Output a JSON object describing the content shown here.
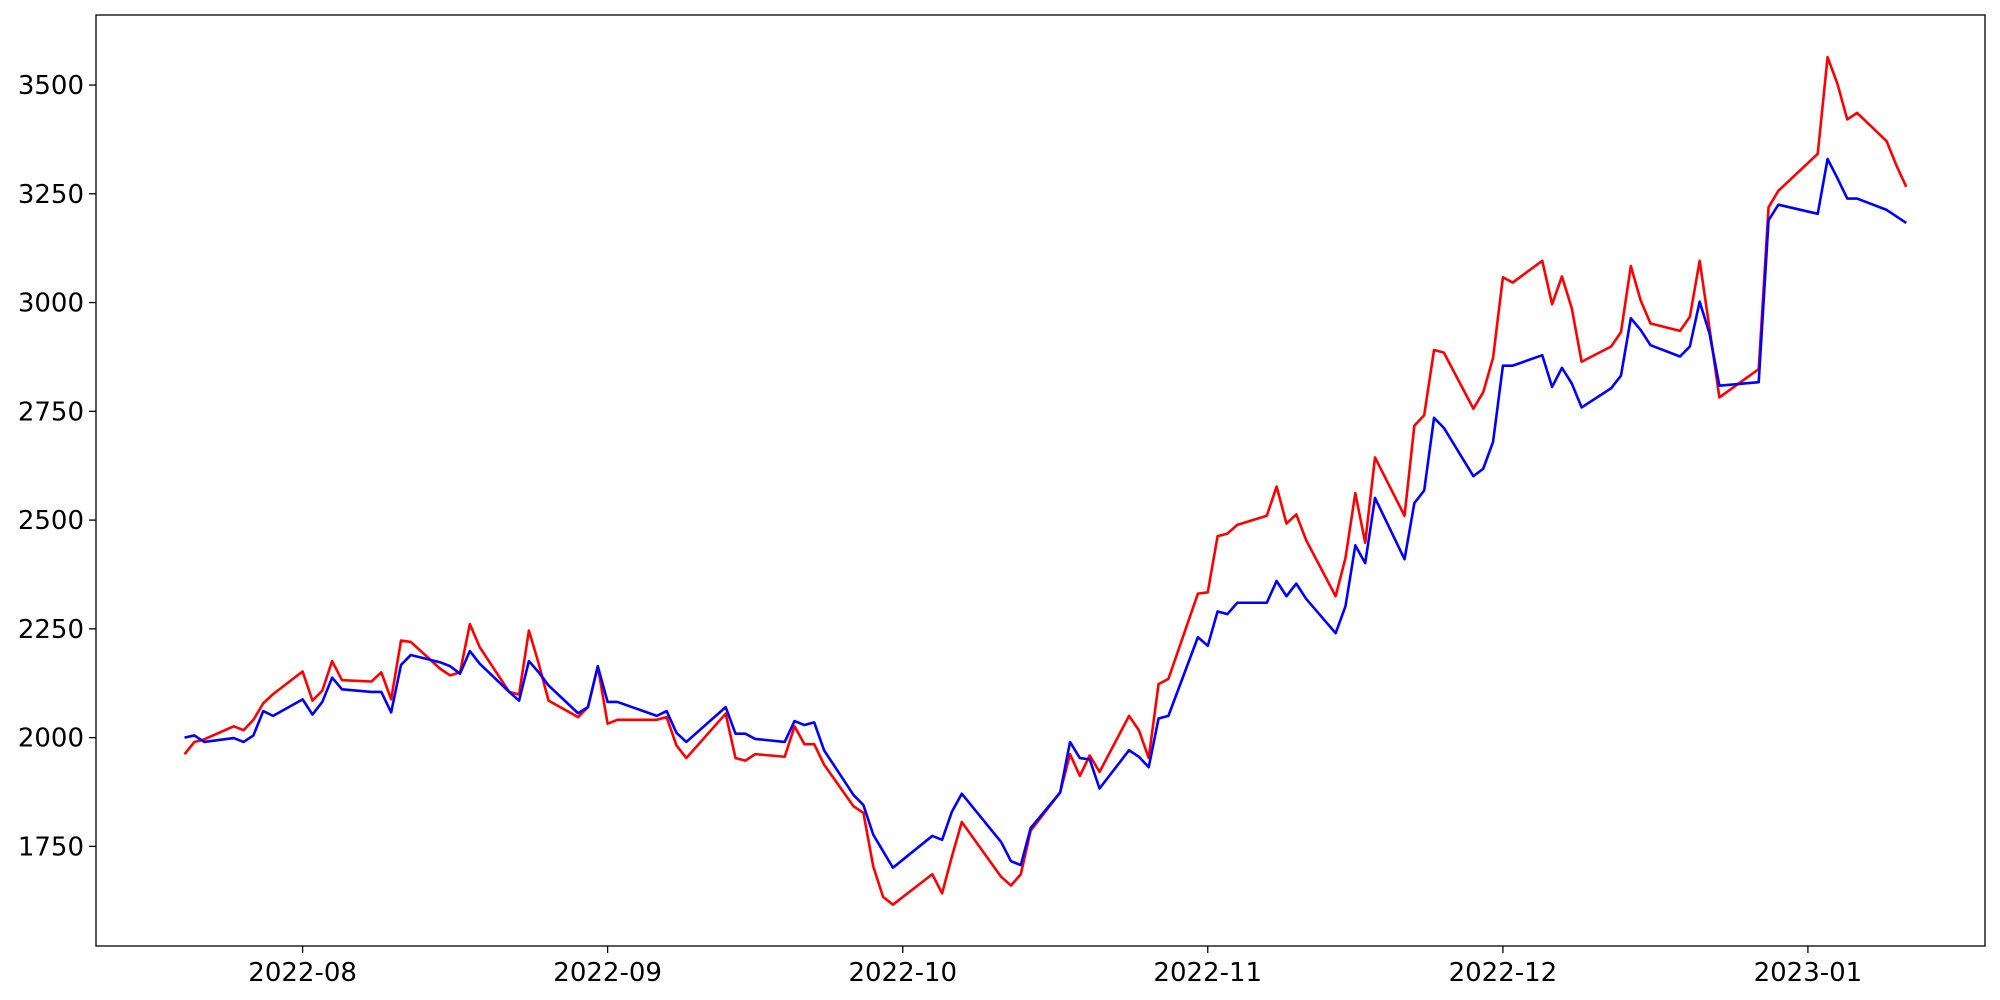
{
  "chart_data": {
    "type": "line",
    "x": [
      "2022-07-20",
      "2022-07-21",
      "2022-07-22",
      "2022-07-25",
      "2022-07-26",
      "2022-07-27",
      "2022-07-28",
      "2022-07-29",
      "2022-08-01",
      "2022-08-02",
      "2022-08-03",
      "2022-08-04",
      "2022-08-05",
      "2022-08-08",
      "2022-08-09",
      "2022-08-10",
      "2022-08-11",
      "2022-08-12",
      "2022-08-15",
      "2022-08-16",
      "2022-08-17",
      "2022-08-18",
      "2022-08-19",
      "2022-08-22",
      "2022-08-23",
      "2022-08-24",
      "2022-08-25",
      "2022-08-26",
      "2022-08-29",
      "2022-08-30",
      "2022-08-31",
      "2022-09-01",
      "2022-09-02",
      "2022-09-06",
      "2022-09-07",
      "2022-09-08",
      "2022-09-09",
      "2022-09-13",
      "2022-09-14",
      "2022-09-15",
      "2022-09-16",
      "2022-09-19",
      "2022-09-20",
      "2022-09-21",
      "2022-09-22",
      "2022-09-23",
      "2022-09-26",
      "2022-09-27",
      "2022-09-28",
      "2022-09-29",
      "2022-09-30",
      "2022-10-04",
      "2022-10-05",
      "2022-10-06",
      "2022-10-07",
      "2022-10-11",
      "2022-10-12",
      "2022-10-13",
      "2022-10-14",
      "2022-10-17",
      "2022-10-18",
      "2022-10-19",
      "2022-10-20",
      "2022-10-21",
      "2022-10-24",
      "2022-10-25",
      "2022-10-26",
      "2022-10-27",
      "2022-10-28",
      "2022-10-31",
      "2022-11-01",
      "2022-11-02",
      "2022-11-03",
      "2022-11-04",
      "2022-11-07",
      "2022-11-08",
      "2022-11-09",
      "2022-11-10",
      "2022-11-11",
      "2022-11-14",
      "2022-11-15",
      "2022-11-16",
      "2022-11-17",
      "2022-11-18",
      "2022-11-21",
      "2022-11-22",
      "2022-11-23",
      "2022-11-24",
      "2022-11-25",
      "2022-11-28",
      "2022-11-29",
      "2022-11-30",
      "2022-12-01",
      "2022-12-02",
      "2022-12-05",
      "2022-12-06",
      "2022-12-07",
      "2022-12-08",
      "2022-12-09",
      "2022-12-12",
      "2022-12-13",
      "2022-12-14",
      "2022-12-15",
      "2022-12-16",
      "2022-12-19",
      "2022-12-20",
      "2022-12-21",
      "2022-12-22",
      "2022-12-23",
      "2022-12-27",
      "2022-12-28",
      "2022-12-29",
      "2023-01-02",
      "2023-01-03",
      "2023-01-04",
      "2023-01-05",
      "2023-01-06",
      "2023-01-09",
      "2023-01-10",
      "2023-01-11"
    ],
    "series": [
      {
        "color": "#ff0000",
        "values": [
          1962,
          1990,
          1996,
          2026,
          2017,
          2041,
          2079,
          2100,
          2152,
          2085,
          2108,
          2176,
          2132,
          2129,
          2150,
          2088,
          2223,
          2220,
          2158,
          2143,
          2150,
          2261,
          2208,
          2105,
          2099,
          2246,
          2170,
          2085,
          2047,
          2070,
          2164,
          2032,
          2041,
          2041,
          2047,
          1982,
          1953,
          2055,
          1953,
          1947,
          1962,
          1956,
          2026,
          1985,
          1985,
          1938,
          1842,
          1827,
          1704,
          1634,
          1616,
          1686,
          1642,
          1727,
          1806,
          1680,
          1660,
          1686,
          1786,
          1874,
          1962,
          1912,
          1959,
          1921,
          2050,
          2017,
          1953,
          2123,
          2135,
          2331,
          2334,
          2463,
          2469,
          2489,
          2510,
          2577,
          2492,
          2513,
          2454,
          2325,
          2413,
          2562,
          2448,
          2644,
          2510,
          2717,
          2741,
          2891,
          2885,
          2756,
          2794,
          2873,
          3058,
          3046,
          3096,
          2996,
          3060,
          2987,
          2864,
          2899,
          2932,
          3084,
          3005,
          2952,
          2935,
          2967,
          3096,
          2941,
          2782,
          2847,
          3219,
          3257,
          3342,
          3564,
          3503,
          3421,
          3436,
          3371,
          3315,
          3266
        ]
      },
      {
        "color": "#0000ff",
        "values": [
          2000,
          2005,
          1990,
          1999,
          1990,
          2005,
          2061,
          2050,
          2088,
          2053,
          2082,
          2138,
          2111,
          2105,
          2105,
          2058,
          2167,
          2190,
          2173,
          2164,
          2147,
          2199,
          2170,
          2105,
          2085,
          2176,
          2150,
          2120,
          2056,
          2070,
          2164,
          2082,
          2082,
          2050,
          2061,
          2011,
          1990,
          2070,
          2009,
          2009,
          1997,
          1990,
          2038,
          2029,
          2035,
          1971,
          1868,
          1845,
          1777,
          1739,
          1701,
          1774,
          1765,
          1830,
          1871,
          1760,
          1716,
          1707,
          1792,
          1874,
          1990,
          1953,
          1950,
          1883,
          1971,
          1956,
          1932,
          2044,
          2050,
          2231,
          2211,
          2290,
          2284,
          2310,
          2310,
          2360,
          2325,
          2354,
          2319,
          2240,
          2302,
          2442,
          2401,
          2551,
          2410,
          2539,
          2568,
          2735,
          2712,
          2601,
          2618,
          2680,
          2855,
          2855,
          2879,
          2806,
          2850,
          2814,
          2759,
          2803,
          2832,
          2964,
          2937,
          2902,
          2876,
          2899,
          3002,
          2929,
          2809,
          2817,
          3189,
          3225,
          3204,
          3330,
          3286,
          3239,
          3239,
          3213,
          3198,
          3183
        ]
      }
    ],
    "xlim": [
      "2022-07-11",
      "2023-01-19"
    ],
    "xticks": [
      {
        "value": "2022-08-01",
        "label": "2022-08"
      },
      {
        "value": "2022-09-01",
        "label": "2022-09"
      },
      {
        "value": "2022-10-01",
        "label": "2022-10"
      },
      {
        "value": "2022-11-01",
        "label": "2022-11"
      },
      {
        "value": "2022-12-01",
        "label": "2022-12"
      },
      {
        "value": "2023-01-01",
        "label": "2023-01"
      }
    ],
    "ylim": [
      1521,
      3661
    ],
    "yticks": [
      1750,
      2000,
      2250,
      2500,
      2750,
      3000,
      3250,
      3500
    ],
    "grid": false
  }
}
